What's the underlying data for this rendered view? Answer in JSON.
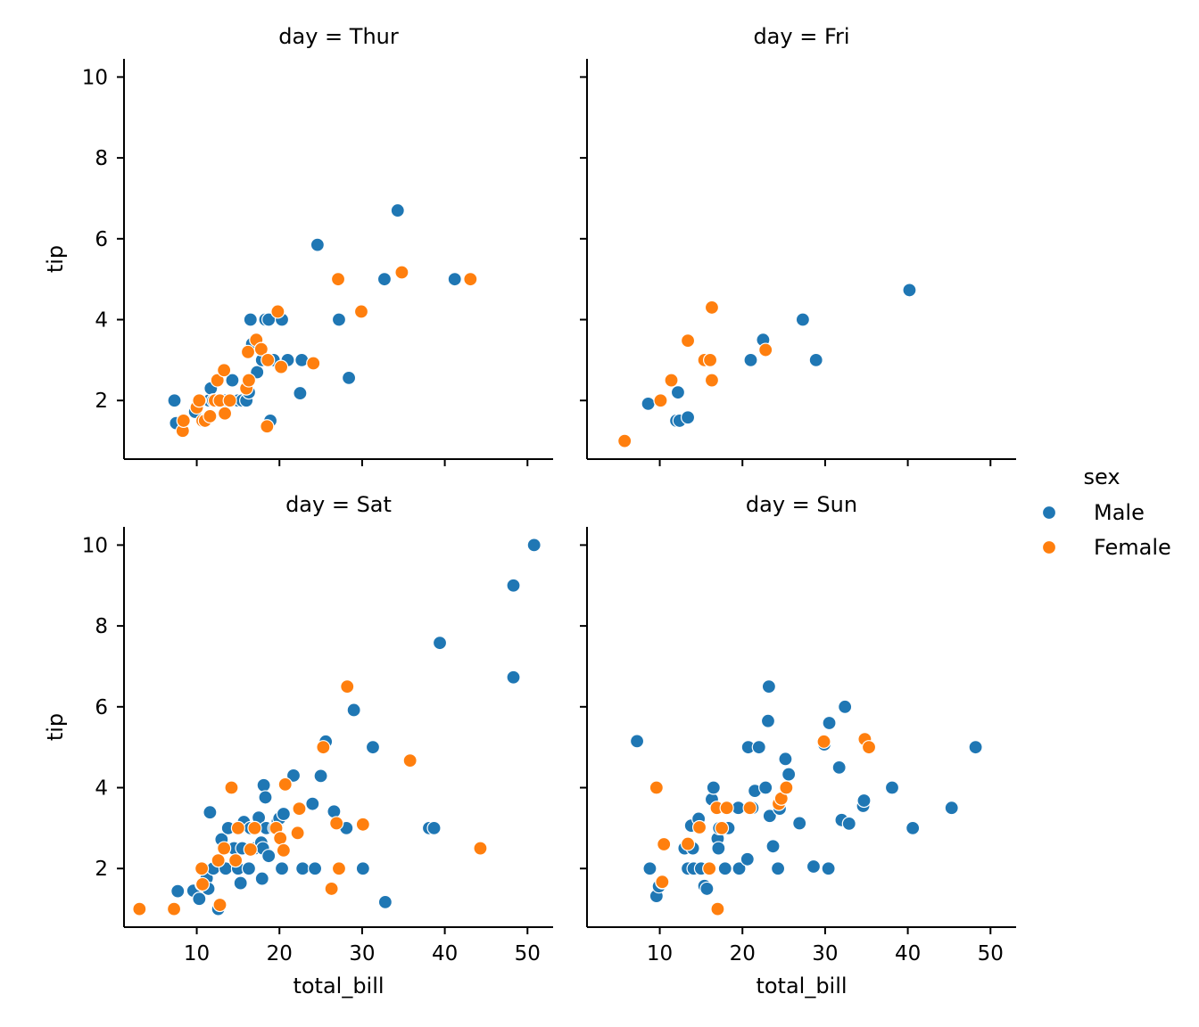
{
  "chart_data": {
    "type": "scatter",
    "x_label": "total_bill",
    "y_label": "tip",
    "xlim": [
      1.2,
      53.1
    ],
    "ylim": [
      0.55,
      10.45
    ],
    "x_ticks": [
      10,
      20,
      30,
      40,
      50
    ],
    "y_ticks": [
      2,
      4,
      6,
      8,
      10
    ],
    "legend": {
      "title": "sex",
      "placement": "right",
      "entries": [
        {
          "label": "Male",
          "color": "#1f77b4"
        },
        {
          "label": "Female",
          "color": "#ff7f0e"
        }
      ]
    },
    "panels": [
      {
        "title": "day = Thur",
        "series": [
          {
            "name": "Male",
            "points": [
              [
                7.3,
                2.0
              ],
              [
                7.5,
                1.44
              ],
              [
                9.8,
                1.72
              ],
              [
                10.3,
                2.0
              ],
              [
                11.5,
                2.0
              ],
              [
                11.7,
                2.3
              ],
              [
                12.0,
                2.0
              ],
              [
                12.5,
                2.0
              ],
              [
                13.0,
                2.0
              ],
              [
                13.4,
                2.0
              ],
              [
                14.3,
                2.5
              ],
              [
                15.0,
                2.0
              ],
              [
                15.5,
                2.0
              ],
              [
                16.0,
                2.0
              ],
              [
                16.3,
                2.2
              ],
              [
                16.5,
                4.0
              ],
              [
                16.7,
                3.4
              ],
              [
                17.3,
                2.7
              ],
              [
                17.9,
                3.0
              ],
              [
                18.3,
                4.0
              ],
              [
                18.7,
                4.0
              ],
              [
                18.9,
                1.5
              ],
              [
                19.3,
                3.0
              ],
              [
                20.3,
                4.0
              ],
              [
                21.0,
                3.0
              ],
              [
                22.5,
                2.18
              ],
              [
                22.7,
                3.0
              ],
              [
                24.6,
                5.85
              ],
              [
                27.2,
                4.0
              ],
              [
                28.4,
                2.56
              ],
              [
                32.7,
                5.0
              ],
              [
                34.3,
                6.7
              ],
              [
                41.2,
                5.0
              ]
            ]
          },
          {
            "name": "Female",
            "points": [
              [
                8.3,
                1.25
              ],
              [
                8.4,
                1.5
              ],
              [
                10.0,
                1.83
              ],
              [
                10.3,
                2.0
              ],
              [
                10.7,
                1.5
              ],
              [
                11.0,
                1.5
              ],
              [
                11.6,
                1.61
              ],
              [
                12.2,
                2.0
              ],
              [
                12.5,
                2.5
              ],
              [
                12.8,
                2.0
              ],
              [
                13.3,
                2.75
              ],
              [
                13.4,
                1.68
              ],
              [
                14.0,
                2.0
              ],
              [
                16.0,
                2.3
              ],
              [
                16.2,
                3.2
              ],
              [
                16.3,
                2.5
              ],
              [
                17.2,
                3.5
              ],
              [
                17.8,
                3.27
              ],
              [
                18.5,
                1.36
              ],
              [
                18.6,
                3.0
              ],
              [
                19.8,
                4.2
              ],
              [
                20.2,
                2.83
              ],
              [
                24.1,
                2.92
              ],
              [
                27.1,
                5.0
              ],
              [
                29.9,
                4.2
              ],
              [
                34.8,
                5.17
              ],
              [
                43.1,
                5.0
              ]
            ]
          }
        ]
      },
      {
        "title": "day = Fri",
        "series": [
          {
            "name": "Male",
            "points": [
              [
                8.6,
                1.92
              ],
              [
                12.0,
                1.5
              ],
              [
                12.2,
                2.2
              ],
              [
                12.4,
                1.5
              ],
              [
                13.4,
                1.58
              ],
              [
                21.0,
                3.0
              ],
              [
                22.5,
                3.5
              ],
              [
                27.3,
                4.0
              ],
              [
                28.9,
                3.0
              ],
              [
                40.2,
                4.73
              ]
            ]
          },
          {
            "name": "Female",
            "points": [
              [
                5.75,
                1.0
              ],
              [
                10.1,
                2.0
              ],
              [
                11.4,
                2.5
              ],
              [
                13.4,
                3.48
              ],
              [
                15.4,
                3.0
              ],
              [
                16.1,
                3.0
              ],
              [
                16.3,
                2.5
              ],
              [
                16.3,
                4.3
              ],
              [
                22.8,
                3.25
              ]
            ]
          }
        ]
      },
      {
        "title": "day = Sat",
        "series": [
          {
            "name": "Male",
            "points": [
              [
                7.7,
                1.44
              ],
              [
                9.6,
                1.45
              ],
              [
                10.3,
                1.25
              ],
              [
                10.6,
                1.61
              ],
              [
                11.2,
                1.76
              ],
              [
                11.4,
                1.5
              ],
              [
                11.6,
                3.39
              ],
              [
                12.0,
                2.0
              ],
              [
                12.6,
                1.0
              ],
              [
                13.0,
                2.72
              ],
              [
                13.5,
                2.0
              ],
              [
                13.8,
                3.0
              ],
              [
                14.5,
                2.5
              ],
              [
                15.0,
                2.0
              ],
              [
                15.3,
                1.64
              ],
              [
                15.5,
                2.5
              ],
              [
                15.7,
                3.15
              ],
              [
                16.3,
                2.0
              ],
              [
                16.5,
                3.0
              ],
              [
                17.0,
                2.5
              ],
              [
                17.5,
                3.26
              ],
              [
                17.8,
                2.64
              ],
              [
                17.9,
                1.75
              ],
              [
                18.0,
                2.5
              ],
              [
                18.1,
                4.06
              ],
              [
                18.3,
                3.76
              ],
              [
                18.4,
                3.0
              ],
              [
                18.7,
                2.31
              ],
              [
                19.4,
                3.0
              ],
              [
                19.8,
                3.16
              ],
              [
                20.0,
                3.24
              ],
              [
                20.3,
                2.0
              ],
              [
                20.5,
                3.35
              ],
              [
                20.6,
                4.08
              ],
              [
                21.7,
                4.3
              ],
              [
                22.8,
                2.0
              ],
              [
                24.0,
                3.6
              ],
              [
                24.3,
                2.0
              ],
              [
                25.0,
                4.29
              ],
              [
                25.6,
                5.14
              ],
              [
                26.6,
                3.41
              ],
              [
                28.1,
                3.0
              ],
              [
                29.0,
                5.92
              ],
              [
                30.1,
                2.0
              ],
              [
                31.3,
                5.0
              ],
              [
                32.8,
                1.17
              ],
              [
                38.1,
                3.0
              ],
              [
                38.7,
                3.0
              ],
              [
                39.4,
                7.58
              ],
              [
                48.3,
                6.73
              ],
              [
                48.3,
                9.0
              ],
              [
                50.8,
                10.0
              ]
            ]
          },
          {
            "name": "Female",
            "points": [
              [
                3.07,
                1.0
              ],
              [
                7.25,
                1.0
              ],
              [
                10.6,
                2.0
              ],
              [
                10.7,
                1.61
              ],
              [
                12.6,
                2.2
              ],
              [
                12.8,
                1.1
              ],
              [
                13.3,
                2.5
              ],
              [
                14.2,
                4.0
              ],
              [
                14.7,
                2.2
              ],
              [
                15.0,
                3.0
              ],
              [
                16.5,
                2.47
              ],
              [
                17.0,
                3.0
              ],
              [
                19.6,
                3.0
              ],
              [
                20.1,
                2.75
              ],
              [
                20.5,
                2.45
              ],
              [
                20.7,
                4.08
              ],
              [
                22.2,
                2.88
              ],
              [
                22.4,
                3.48
              ],
              [
                25.3,
                5.0
              ],
              [
                26.3,
                1.5
              ],
              [
                26.9,
                3.12
              ],
              [
                27.2,
                2.0
              ],
              [
                28.2,
                6.5
              ],
              [
                30.1,
                3.09
              ],
              [
                35.8,
                4.67
              ],
              [
                44.3,
                2.5
              ]
            ]
          }
        ]
      },
      {
        "title": "day = Sun",
        "series": [
          {
            "name": "Male",
            "points": [
              [
                7.25,
                5.15
              ],
              [
                8.8,
                2.0
              ],
              [
                9.6,
                1.32
              ],
              [
                9.9,
                1.56
              ],
              [
                10.3,
                1.66
              ],
              [
                13.0,
                2.5
              ],
              [
                13.4,
                2.0
              ],
              [
                13.8,
                3.06
              ],
              [
                14.0,
                2.5
              ],
              [
                14.1,
                2.0
              ],
              [
                14.7,
                3.23
              ],
              [
                15.0,
                2.0
              ],
              [
                15.4,
                1.57
              ],
              [
                15.7,
                1.5
              ],
              [
                16.3,
                3.71
              ],
              [
                16.5,
                4.0
              ],
              [
                17.0,
                2.74
              ],
              [
                17.1,
                2.5
              ],
              [
                17.2,
                3.0
              ],
              [
                17.9,
                2.0
              ],
              [
                18.3,
                3.0
              ],
              [
                19.5,
                3.5
              ],
              [
                19.6,
                2.0
              ],
              [
                20.6,
                2.23
              ],
              [
                20.7,
                5.0
              ],
              [
                21.2,
                3.5
              ],
              [
                21.5,
                3.92
              ],
              [
                22.0,
                5.0
              ],
              [
                22.8,
                4.0
              ],
              [
                23.1,
                5.65
              ],
              [
                23.2,
                6.5
              ],
              [
                23.3,
                3.3
              ],
              [
                23.7,
                2.55
              ],
              [
                24.3,
                2.0
              ],
              [
                24.5,
                3.48
              ],
              [
                25.2,
                4.71
              ],
              [
                25.6,
                4.33
              ],
              [
                26.9,
                3.12
              ],
              [
                28.6,
                2.05
              ],
              [
                29.9,
                5.07
              ],
              [
                30.4,
                2.0
              ],
              [
                30.5,
                5.6
              ],
              [
                31.7,
                4.5
              ],
              [
                32.0,
                3.2
              ],
              [
                32.4,
                6.0
              ],
              [
                32.9,
                3.11
              ],
              [
                34.6,
                3.55
              ],
              [
                34.7,
                3.68
              ],
              [
                38.1,
                4.0
              ],
              [
                40.6,
                3.0
              ],
              [
                45.3,
                3.5
              ],
              [
                48.2,
                5.0
              ]
            ]
          },
          {
            "name": "Female",
            "points": [
              [
                9.6,
                4.0
              ],
              [
                10.3,
                1.67
              ],
              [
                10.5,
                2.6
              ],
              [
                13.4,
                2.61
              ],
              [
                14.8,
                3.02
              ],
              [
                16.0,
                2.0
              ],
              [
                16.9,
                3.5
              ],
              [
                17.0,
                1.0
              ],
              [
                17.5,
                3.0
              ],
              [
                18.1,
                3.5
              ],
              [
                20.9,
                3.5
              ],
              [
                24.4,
                3.6
              ],
              [
                24.7,
                3.73
              ],
              [
                25.3,
                4.0
              ],
              [
                29.85,
                5.14
              ],
              [
                34.8,
                5.2
              ],
              [
                35.3,
                5.0
              ]
            ]
          }
        ]
      }
    ]
  }
}
